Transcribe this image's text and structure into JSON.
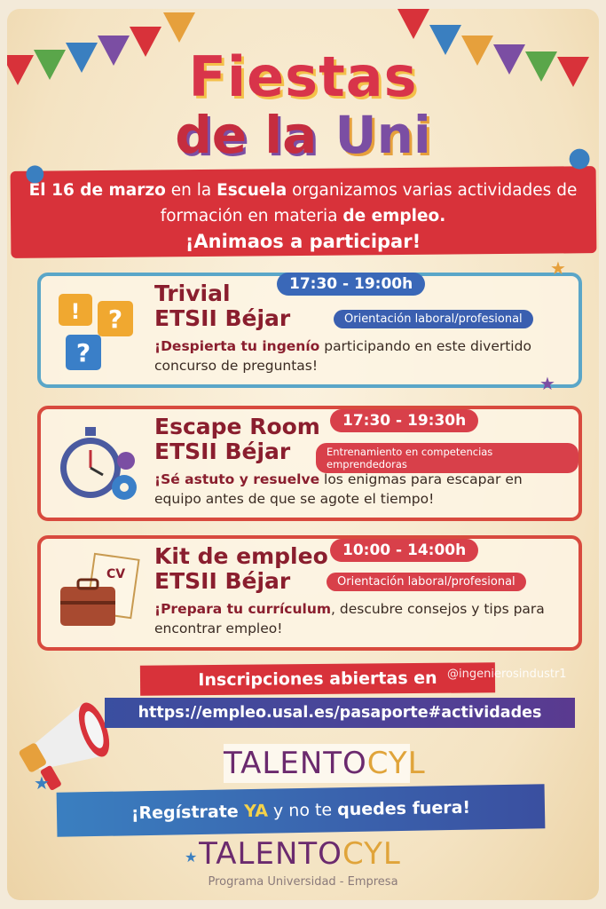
{
  "title": {
    "line1": "Fiestas",
    "line2_a": "de la",
    "line2_b": "Uni"
  },
  "intro": {
    "date": "El 16 de marzo",
    "t1": " en la ",
    "place": "Escuela",
    "t2": " organizamos varias actividades de formación en materia ",
    "topic": "de empleo.",
    "cta": "¡Animaos a participar!"
  },
  "activities": [
    {
      "title1": "Trivial",
      "title2": "ETSII Béjar",
      "time": "17:30 - 19:00h",
      "tag": "Orientación laboral/profesional",
      "desc_bold": "¡Despierta tu ingenío",
      "desc": " participando en este divertido concurso de preguntas!",
      "icon": "question-bubbles-icon"
    },
    {
      "title1": "Escape Room",
      "title2": "ETSII Béjar",
      "time": "17:30 - 19:30h",
      "tag": "Entrenamiento en competencias emprendedoras",
      "desc_bold": "¡Sé astuto y resuelve",
      "desc": " los enigmas para escapar en equipo antes de que se agote el tiempo!",
      "icon": "stopwatch-gears-icon"
    },
    {
      "title1": "Kit de empleo",
      "title2": "ETSII Béjar",
      "time": "10:00 - 14:00h",
      "tag": "Orientación laboral/profesional",
      "desc_bold": "¡Prepara tu currículum",
      "desc": ", descubre consejos y tips para encontrar empleo!",
      "icon": "briefcase-cv-icon",
      "cv_label": "CV"
    }
  ],
  "registration": {
    "label": "Inscripciones abiertas en",
    "url": "https://empleo.usal.es/pasaporte#actividades",
    "watermark": "@ingenierosindustr1"
  },
  "logo": {
    "a": "TALENTO",
    "b": "CYL"
  },
  "register_cta": {
    "a": "¡Regístrate ",
    "b": "YA",
    "c": " y no te ",
    "d": "quedes fuera!"
  },
  "footer": {
    "logo_a": "TALENTO",
    "logo_b": "CYL",
    "subtitle": "Programa Universidad - Empresa"
  },
  "colors": {
    "red": "#d8323a",
    "blue": "#3a5fb0",
    "maroon": "#8a1e2e",
    "purple": "#6b2a6e",
    "gold": "#e0a43a"
  }
}
